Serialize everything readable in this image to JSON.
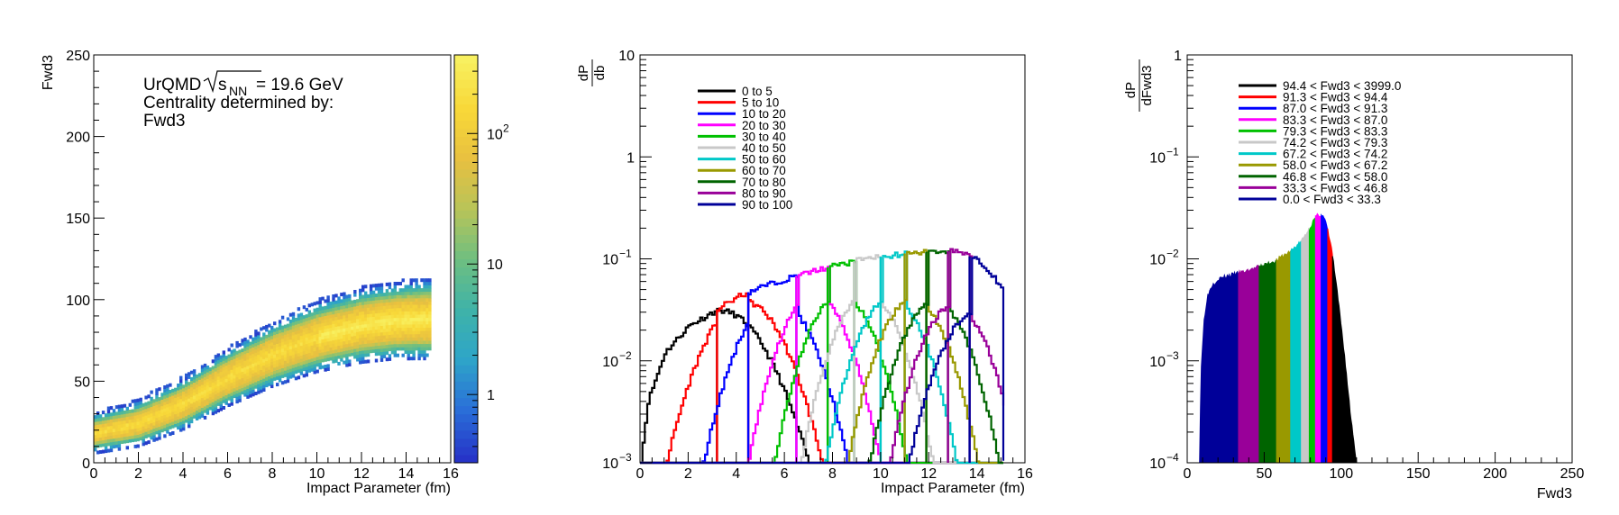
{
  "chart_data": [
    {
      "type": "heatmap",
      "xlabel": "Impact Parameter (fm)",
      "ylabel": "Fwd3",
      "xlim": [
        0,
        16
      ],
      "ylim": [
        0,
        250
      ],
      "x_ticks": [
        0,
        2,
        4,
        6,
        8,
        10,
        12,
        14,
        16
      ],
      "y_ticks": [
        0,
        50,
        100,
        150,
        200,
        250
      ],
      "annotation": {
        "prefix": "UrQMD",
        "sqrt_label": "s",
        "sqrt_sub": "NN",
        "energy": "= 19.6 GeV",
        "line2": "Centrality determined by:",
        "line3": "Fwd3"
      },
      "colorbar": {
        "scale": "log",
        "range": [
          0.3,
          400
        ],
        "tick_labels": [
          "1",
          "10",
          "10",
          "2"
        ],
        "tick_values": [
          1,
          10,
          100
        ]
      },
      "band": {
        "x_range": [
          0,
          15
        ],
        "center": [
          [
            0,
            18
          ],
          [
            2,
            24
          ],
          [
            4,
            36
          ],
          [
            6,
            52
          ],
          [
            8,
            66
          ],
          [
            10,
            77
          ],
          [
            12,
            84
          ],
          [
            13.5,
            87
          ],
          [
            15,
            88
          ]
        ],
        "half_width_core": [
          [
            0,
            5
          ],
          [
            6,
            9
          ],
          [
            10,
            11
          ],
          [
            15,
            13
          ]
        ],
        "half_width_outer": [
          [
            0,
            11
          ],
          [
            6,
            16
          ],
          [
            10,
            20
          ],
          [
            15,
            23
          ]
        ],
        "colors": {
          "low": "#2a5bd7",
          "mid": "#3fb3a8",
          "high": "#f0d030",
          "peak": "#f8f050"
        }
      }
    },
    {
      "type": "line",
      "xlabel": "Impact Parameter (fm)",
      "ylabel_num": "dP",
      "ylabel_den": "db",
      "xlim": [
        0,
        16
      ],
      "ylim": [
        0.001,
        10
      ],
      "yscale": "log",
      "x_ticks": [
        0,
        2,
        4,
        6,
        8,
        10,
        12,
        14,
        16
      ],
      "y_tick_labels": [
        {
          "v": 0.001,
          "base": "10",
          "exp": "−3"
        },
        {
          "v": 0.01,
          "base": "10",
          "exp": "−2"
        },
        {
          "v": 0.1,
          "base": "10",
          "exp": "−1"
        },
        {
          "v": 1,
          "base": "1",
          "exp": ""
        },
        {
          "v": 10,
          "base": "10",
          "exp": ""
        }
      ],
      "legend_position": "top-left",
      "series": [
        {
          "name": "0 to 5",
          "color": "#000000",
          "mu": 3.3,
          "sigma": 1.4,
          "amp": 0.031,
          "lo": 0,
          "hi": 3.2
        },
        {
          "name": "5 to 10",
          "color": "#ff0000",
          "mu": 4.3,
          "sigma": 1.2,
          "amp": 0.038,
          "lo": 3.2,
          "hi": 4.5
        },
        {
          "name": "10 to 20",
          "color": "#0000ff",
          "mu": 5.6,
          "sigma": 1.1,
          "amp": 0.041,
          "lo": 4.5,
          "hi": 6.5
        },
        {
          "name": "20 to 30",
          "color": "#ff00ff",
          "mu": 7.2,
          "sigma": 1.0,
          "amp": 0.044,
          "lo": 6.5,
          "hi": 7.8
        },
        {
          "name": "30 to 40",
          "color": "#00c000",
          "mu": 8.3,
          "sigma": 1.0,
          "amp": 0.045,
          "lo": 7.8,
          "hi": 8.9
        },
        {
          "name": "40 to 50",
          "color": "#c8c8c8",
          "mu": 9.4,
          "sigma": 1.0,
          "amp": 0.044,
          "lo": 8.9,
          "hi": 10.0
        },
        {
          "name": "50 to 60",
          "color": "#00c8c8",
          "mu": 10.4,
          "sigma": 1.0,
          "amp": 0.042,
          "lo": 10.0,
          "hi": 11.0
        },
        {
          "name": "60 to 70",
          "color": "#999900",
          "mu": 11.3,
          "sigma": 1.0,
          "amp": 0.04,
          "lo": 11.0,
          "hi": 11.9
        },
        {
          "name": "70 to 80",
          "color": "#006400",
          "mu": 12.2,
          "sigma": 1.0,
          "amp": 0.038,
          "lo": 11.9,
          "hi": 12.8
        },
        {
          "name": "80 to 90",
          "color": "#990099",
          "mu": 13.0,
          "sigma": 1.0,
          "amp": 0.035,
          "lo": 12.8,
          "hi": 13.7
        },
        {
          "name": "90 to 100",
          "color": "#000099",
          "mu": 14.0,
          "sigma": 1.1,
          "amp": 0.031,
          "lo": 13.7,
          "hi": 15.1
        }
      ],
      "envelope": [
        [
          0,
          0.001
        ],
        [
          0.3,
          0.004
        ],
        [
          1,
          0.012
        ],
        [
          2,
          0.022
        ],
        [
          3,
          0.03
        ],
        [
          4,
          0.042
        ],
        [
          5,
          0.053
        ],
        [
          6,
          0.063
        ],
        [
          7,
          0.074
        ],
        [
          8,
          0.085
        ],
        [
          9,
          0.096
        ],
        [
          10,
          0.105
        ],
        [
          11,
          0.113
        ],
        [
          12,
          0.118
        ],
        [
          13,
          0.12
        ],
        [
          14,
          0.1
        ],
        [
          14.6,
          0.07
        ],
        [
          15,
          0.05
        ],
        [
          15.1,
          0.001
        ]
      ]
    },
    {
      "type": "area",
      "xlabel": "Fwd3",
      "ylabel_num": "dP",
      "ylabel_den": "dFwd3",
      "xlim": [
        0,
        250
      ],
      "ylim": [
        0.0001,
        1
      ],
      "yscale": "log",
      "x_ticks": [
        0,
        50,
        100,
        150,
        200,
        250
      ],
      "y_tick_labels": [
        {
          "v": 0.0001,
          "base": "10",
          "exp": "−4"
        },
        {
          "v": 0.001,
          "base": "10",
          "exp": "−3"
        },
        {
          "v": 0.01,
          "base": "10",
          "exp": "−2"
        },
        {
          "v": 0.1,
          "base": "10",
          "exp": "−1"
        },
        {
          "v": 1,
          "base": "1",
          "exp": ""
        }
      ],
      "legend_position": "top-left",
      "series": [
        {
          "name": "94.4 < Fwd3 < 3999.0",
          "color": "#000000",
          "lo": 94.4,
          "hi": 110
        },
        {
          "name": "91.3 < Fwd3 < 94.4",
          "color": "#ff0000",
          "lo": 91.3,
          "hi": 94.4
        },
        {
          "name": "87.0 < Fwd3 < 91.3",
          "color": "#0000ff",
          "lo": 87.0,
          "hi": 91.3
        },
        {
          "name": "83.3 < Fwd3 < 87.0",
          "color": "#ff00ff",
          "lo": 83.3,
          "hi": 87.0
        },
        {
          "name": "79.3 < Fwd3 < 83.3",
          "color": "#00c000",
          "lo": 79.3,
          "hi": 83.3
        },
        {
          "name": "74.2 < Fwd3 < 79.3",
          "color": "#c8c8c8",
          "lo": 74.2,
          "hi": 79.3
        },
        {
          "name": "67.2 < Fwd3 < 74.2",
          "color": "#00c8c8",
          "lo": 67.2,
          "hi": 74.2
        },
        {
          "name": "58.0 < Fwd3 < 67.2",
          "color": "#999900",
          "lo": 58.0,
          "hi": 67.2
        },
        {
          "name": "46.8 < Fwd3 < 58.0",
          "color": "#006400",
          "lo": 46.8,
          "hi": 58.0
        },
        {
          "name": "33.3 < Fwd3 < 46.8",
          "color": "#990099",
          "lo": 33.3,
          "hi": 46.8
        },
        {
          "name": "0.0 < Fwd3 < 33.3",
          "color": "#000099",
          "lo": 8,
          "hi": 33.3
        }
      ],
      "curve": [
        [
          8,
          0.0001
        ],
        [
          9,
          0.0008
        ],
        [
          11,
          0.0025
        ],
        [
          13,
          0.0042
        ],
        [
          16,
          0.0055
        ],
        [
          20,
          0.0063
        ],
        [
          25,
          0.0067
        ],
        [
          33,
          0.0072
        ],
        [
          40,
          0.0077
        ],
        [
          50,
          0.0087
        ],
        [
          58,
          0.0097
        ],
        [
          67,
          0.0118
        ],
        [
          74,
          0.0148
        ],
        [
          79,
          0.0195
        ],
        [
          83,
          0.025
        ],
        [
          85,
          0.027
        ],
        [
          87,
          0.027
        ],
        [
          89,
          0.025
        ],
        [
          91,
          0.02
        ],
        [
          94,
          0.012
        ],
        [
          98,
          0.004
        ],
        [
          102,
          0.0012
        ],
        [
          106,
          0.0003
        ],
        [
          110,
          0.0001
        ]
      ]
    }
  ]
}
